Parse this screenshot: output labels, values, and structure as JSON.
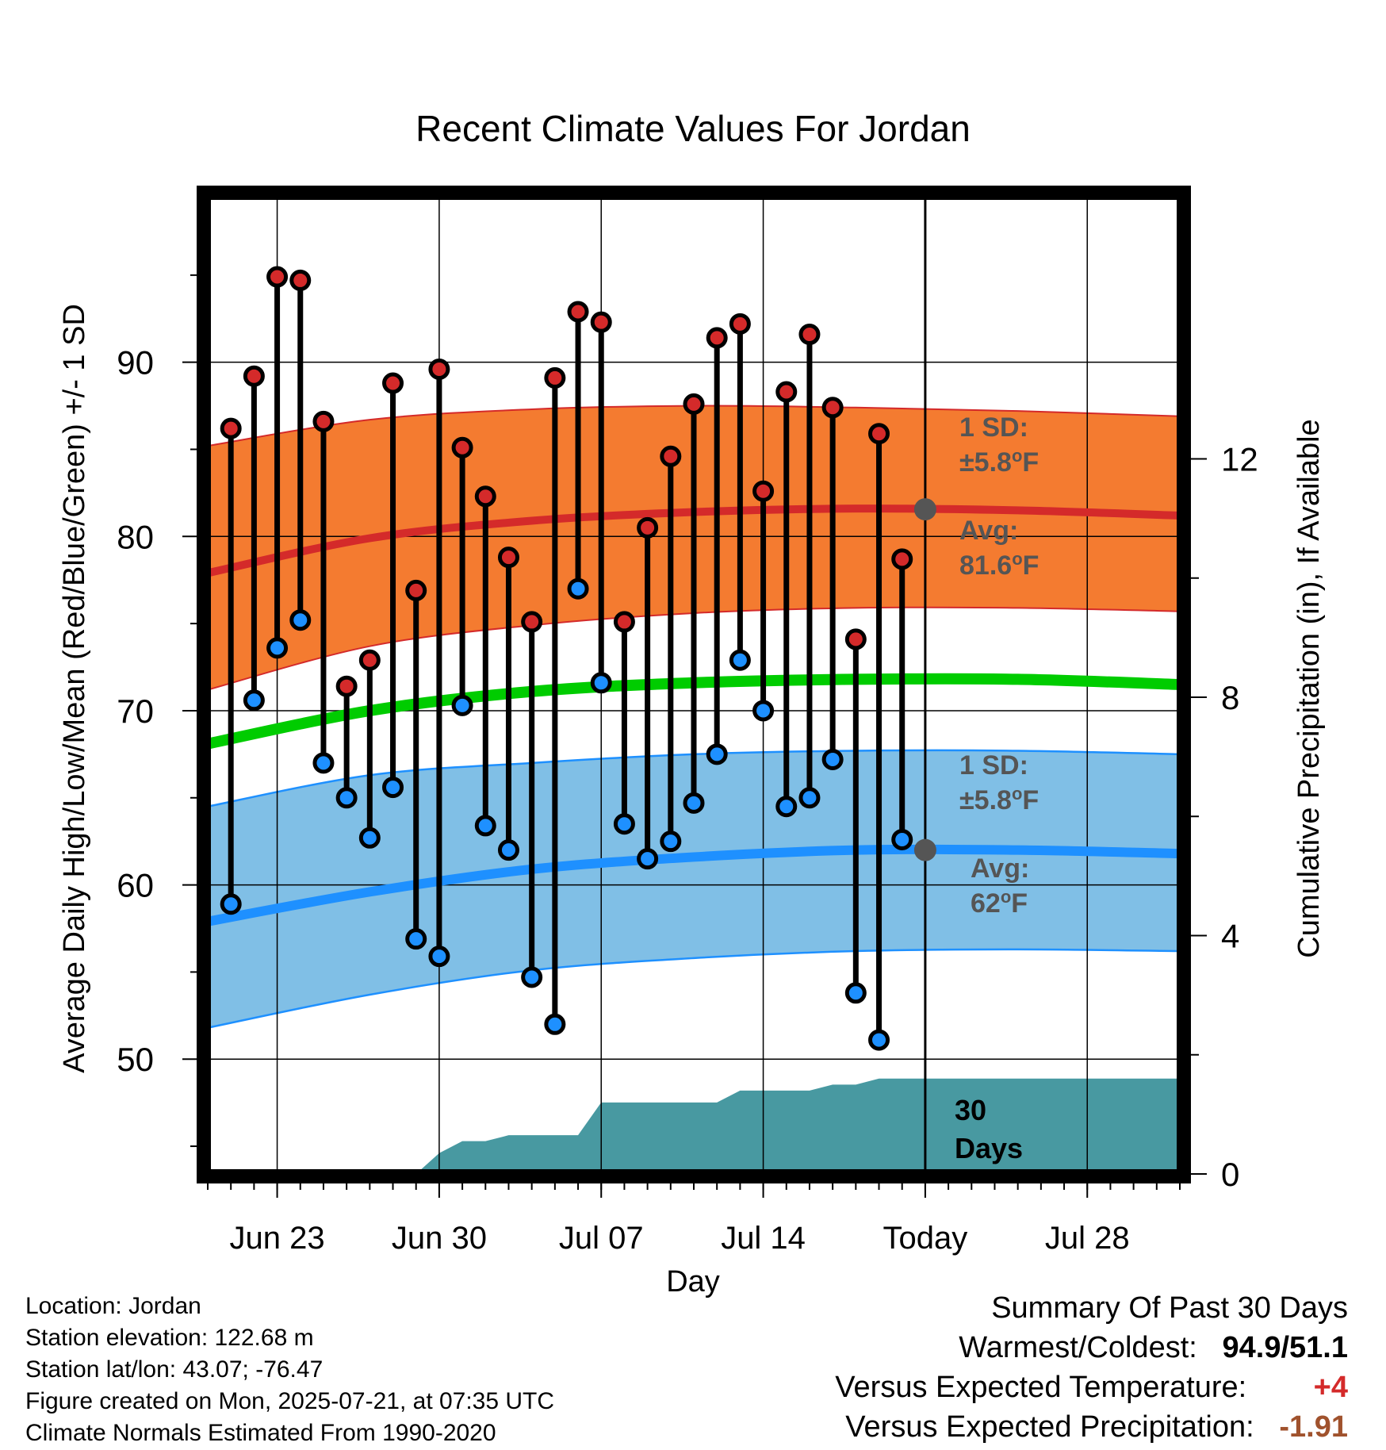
{
  "chart_data": {
    "type": "line",
    "title": "Recent Climate Values For Jordan",
    "xlabel": "Day",
    "ylabel": "Average Daily High/Low/Mean (Red/Blue/Green) +/- 1 SD",
    "y2label": "Cumulative Precipitation (in), If Available",
    "x_axis": {
      "start": "2025-06-20",
      "end": "2025-08-01",
      "ticks": [
        {
          "date": "2025-06-23",
          "label": "Jun 23"
        },
        {
          "date": "2025-06-30",
          "label": "Jun 30"
        },
        {
          "date": "2025-07-07",
          "label": "Jul 07"
        },
        {
          "date": "2025-07-14",
          "label": "Jul 14"
        },
        {
          "date": "2025-07-21",
          "label": "Today"
        },
        {
          "date": "2025-07-28",
          "label": "Jul 28"
        }
      ]
    },
    "y_axis": {
      "ylim": [
        43.5,
        99.5
      ],
      "ticks": [
        50,
        60,
        70,
        80,
        90
      ],
      "grid": true
    },
    "y2_axis": {
      "ylim": [
        0,
        16
      ],
      "ticks": [
        0,
        4,
        8,
        12
      ]
    },
    "today": "2025-07-21",
    "today_label_lines": [
      "30",
      "Days"
    ],
    "daily": {
      "dates": [
        "2025-06-21",
        "2025-06-22",
        "2025-06-23",
        "2025-06-24",
        "2025-06-25",
        "2025-06-26",
        "2025-06-27",
        "2025-06-28",
        "2025-06-29",
        "2025-06-30",
        "2025-07-01",
        "2025-07-02",
        "2025-07-03",
        "2025-07-04",
        "2025-07-05",
        "2025-07-06",
        "2025-07-07",
        "2025-07-08",
        "2025-07-09",
        "2025-07-10",
        "2025-07-11",
        "2025-07-12",
        "2025-07-13",
        "2025-07-14",
        "2025-07-15",
        "2025-07-16",
        "2025-07-17",
        "2025-07-18",
        "2025-07-19",
        "2025-07-20"
      ],
      "high": [
        86.2,
        89.2,
        94.9,
        94.7,
        86.6,
        71.4,
        72.9,
        88.8,
        76.9,
        89.6,
        85.1,
        82.3,
        78.8,
        75.1,
        89.1,
        92.9,
        92.3,
        75.1,
        80.5,
        84.6,
        87.6,
        91.4,
        92.2,
        82.6,
        88.3,
        91.6,
        87.4,
        74.1,
        85.9,
        78.7
      ],
      "low": [
        58.9,
        70.6,
        73.6,
        75.2,
        67.0,
        65.0,
        62.7,
        65.6,
        56.9,
        55.9,
        70.3,
        63.4,
        62.0,
        54.7,
        52.0,
        77.0,
        71.6,
        63.5,
        61.5,
        62.5,
        64.7,
        67.5,
        72.9,
        70.0,
        64.5,
        65.0,
        67.2,
        53.8,
        51.1,
        62.6
      ]
    },
    "normals": {
      "dates": [
        "2025-06-20",
        "2025-06-27",
        "2025-07-04",
        "2025-07-11",
        "2025-07-18",
        "2025-07-25",
        "2025-08-01"
      ],
      "high_avg": [
        77.9,
        79.9,
        80.9,
        81.4,
        81.6,
        81.5,
        81.2
      ],
      "high_upper": [
        85.2,
        86.7,
        87.3,
        87.5,
        87.4,
        87.2,
        86.9
      ],
      "high_lower": [
        71.2,
        73.7,
        74.9,
        75.6,
        75.9,
        75.9,
        75.7
      ],
      "mean_avg": [
        68.1,
        70.0,
        71.1,
        71.6,
        71.8,
        71.8,
        71.5
      ],
      "low_avg": [
        57.9,
        59.6,
        60.9,
        61.6,
        62.0,
        62.0,
        61.8
      ],
      "low_upper": [
        64.5,
        66.3,
        67.0,
        67.5,
        67.7,
        67.7,
        67.5
      ],
      "low_lower": [
        51.8,
        53.7,
        55.1,
        55.8,
        56.2,
        56.3,
        56.2
      ]
    },
    "precip": {
      "dates": [
        "2025-06-20",
        "2025-06-29",
        "2025-06-30",
        "2025-07-01",
        "2025-07-02",
        "2025-07-03",
        "2025-07-04",
        "2025-07-05",
        "2025-07-06",
        "2025-07-07",
        "2025-07-08",
        "2025-07-09",
        "2025-07-10",
        "2025-07-11",
        "2025-07-12",
        "2025-07-13",
        "2025-07-14",
        "2025-07-15",
        "2025-07-16",
        "2025-07-17",
        "2025-07-18",
        "2025-07-19",
        "2025-07-20",
        "2025-07-21",
        "2025-08-01"
      ],
      "cumulative": [
        0,
        0,
        0.35,
        0.55,
        0.55,
        0.65,
        0.65,
        0.65,
        0.65,
        1.2,
        1.2,
        1.2,
        1.2,
        1.2,
        1.2,
        1.4,
        1.4,
        1.4,
        1.4,
        1.5,
        1.5,
        1.6,
        1.6,
        1.6,
        1.6
      ]
    },
    "annotations": [
      {
        "series": "high",
        "sd_label": "1 SD:",
        "sd_value": "±5.8",
        "avg_label": "Avg:",
        "avg_value": "81.6",
        "unit": "F",
        "degree": "o"
      },
      {
        "series": "low",
        "sd_label": "1 SD:",
        "sd_value": "±5.8",
        "avg_label": "Avg:",
        "avg_value": "62",
        "unit": "F",
        "degree": "o"
      }
    ],
    "colors": {
      "high_band": "#f47b30",
      "high_line": "#d42a2a",
      "high_dot": "#d42a2a",
      "mean_line": "#00cc00",
      "low_band": "#80bfe6",
      "low_band_edge": "#1e90ff",
      "low_line": "#1e90ff",
      "low_dot": "#1e90ff",
      "precip": "#4899a1",
      "annotation": "#555555"
    }
  },
  "location": {
    "location_line": "Location: Jordan",
    "elevation_line": "Station elevation: 122.68 m",
    "latlon_line": "Station lat/lon: 43.07; -76.47",
    "created_line": "Figure created on Mon, 2025-07-21, at 07:35 UTC",
    "normals_line": "Climate Normals Estimated From 1990-2020"
  },
  "summary": {
    "title": "Summary Of Past 30 Days",
    "warm_cold_label": "Warmest/Coldest:",
    "warm_cold_value": "94.9/51.1",
    "temp_label": "Versus Expected Temperature:",
    "temp_value": "+4",
    "temp_color": "#d42a2a",
    "precip_label": "Versus Expected Precipitation:",
    "precip_value": "-1.91",
    "precip_color": "#a0522d"
  }
}
